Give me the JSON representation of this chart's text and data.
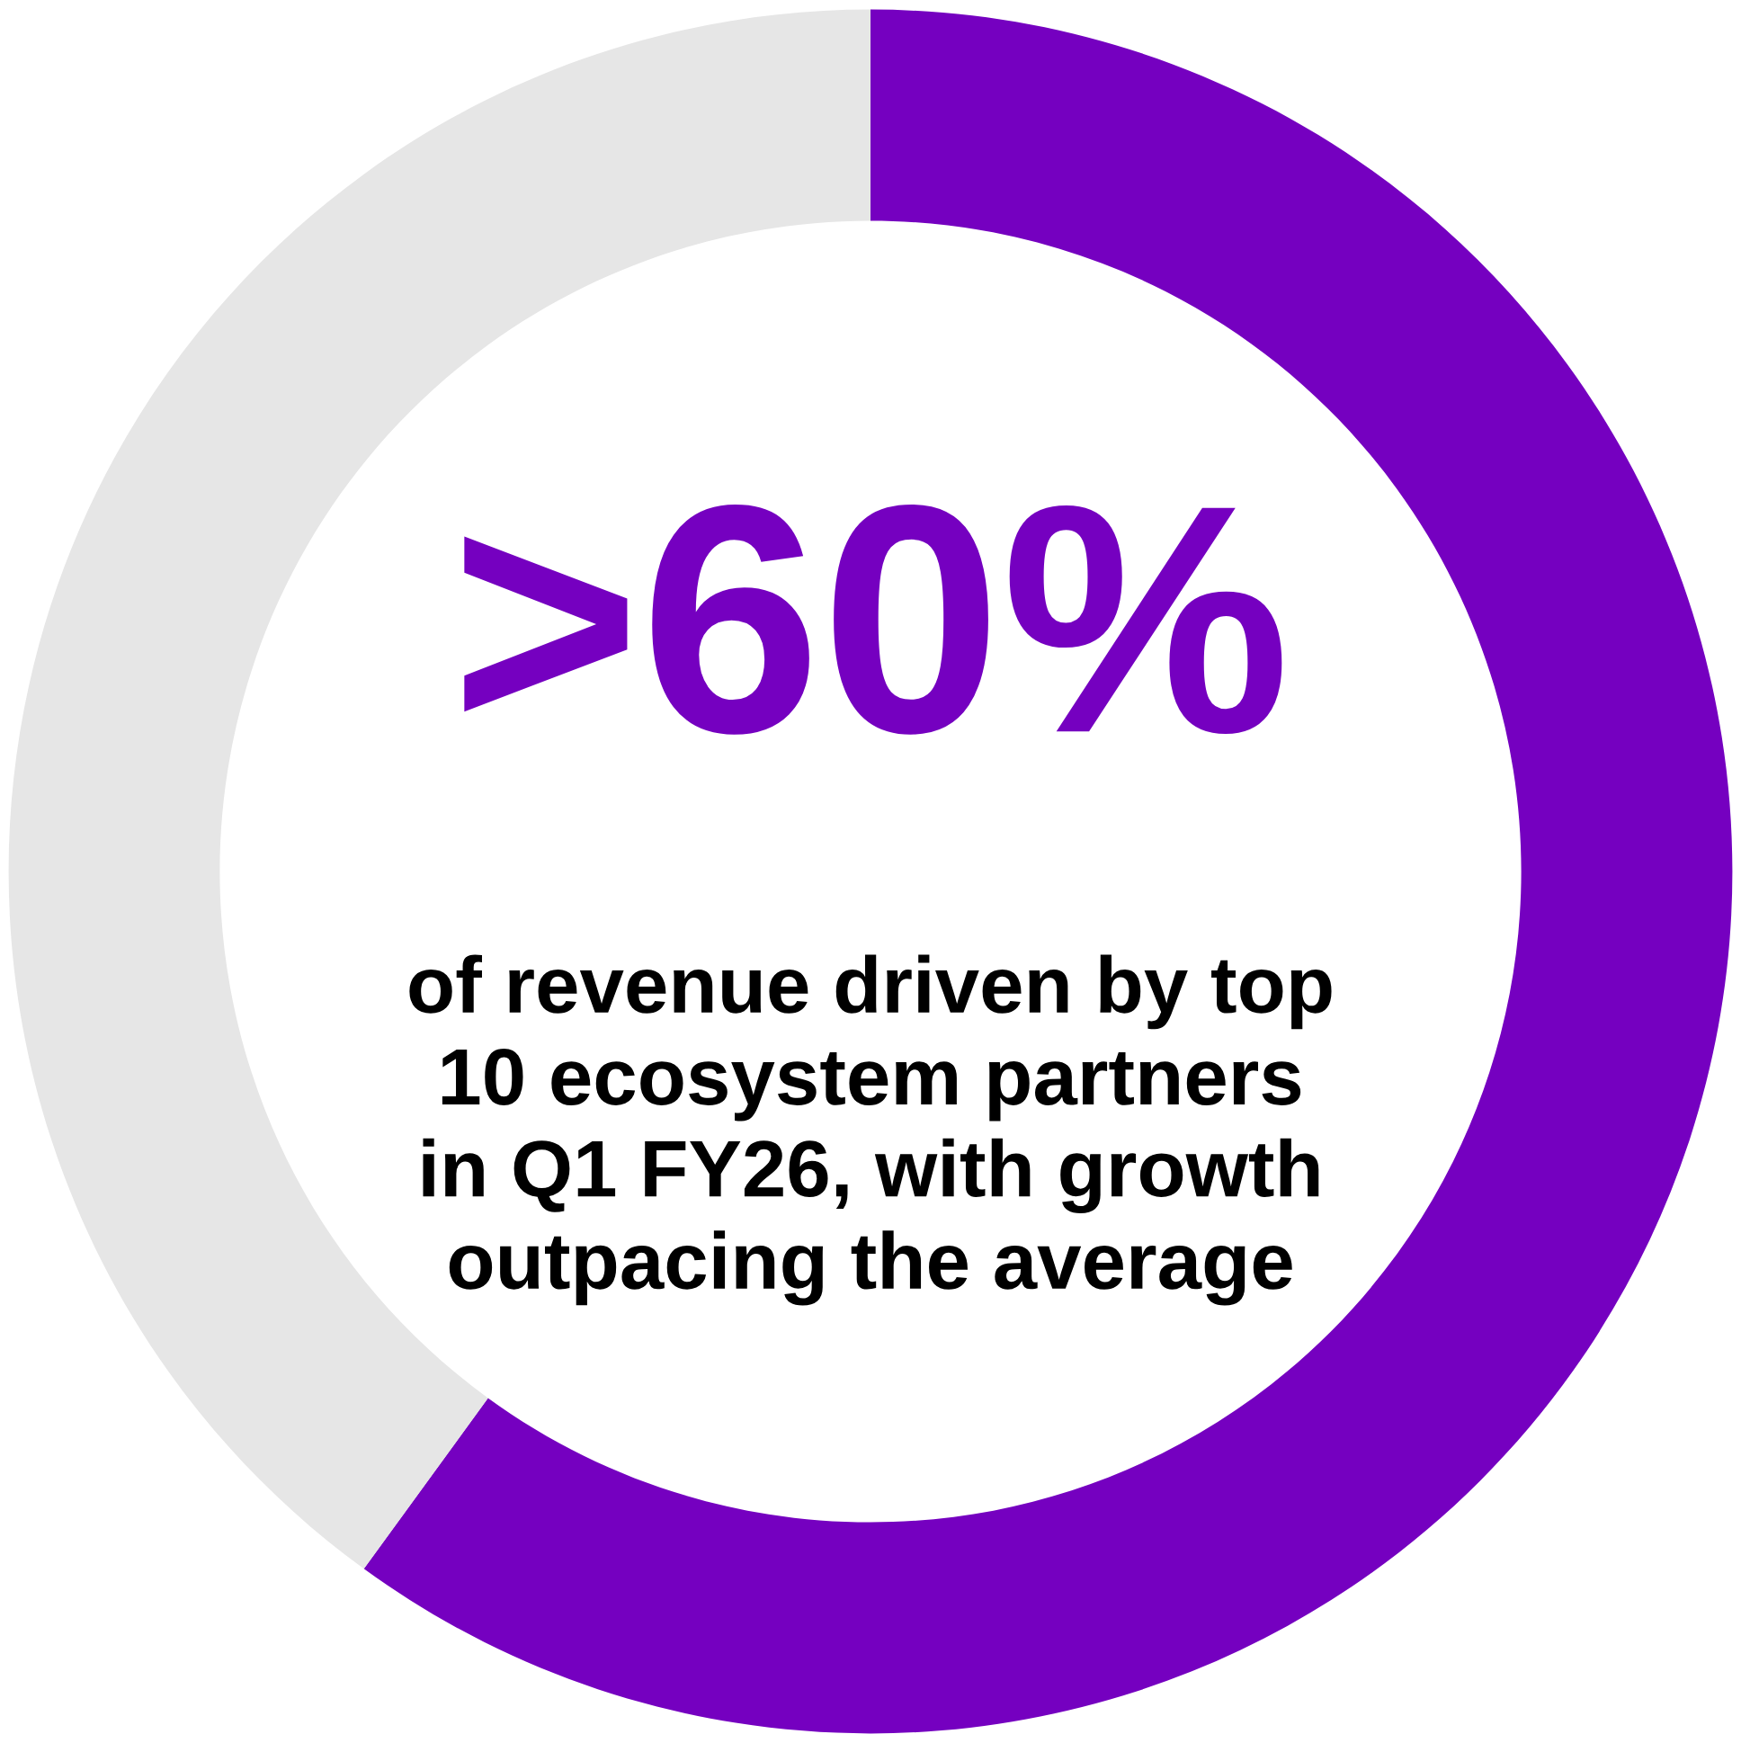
{
  "chart_data": {
    "type": "donut",
    "categories": [
      null,
      null
    ],
    "values": [
      60,
      40
    ],
    "colors": [
      "#7500c0",
      "#e6e6e6"
    ],
    "annotations": [
      ">60%",
      "of revenue driven by top\n10 ecosystem partners\nin Q1 FY26, with growth\noutpacing the average"
    ],
    "legend": false
  }
}
